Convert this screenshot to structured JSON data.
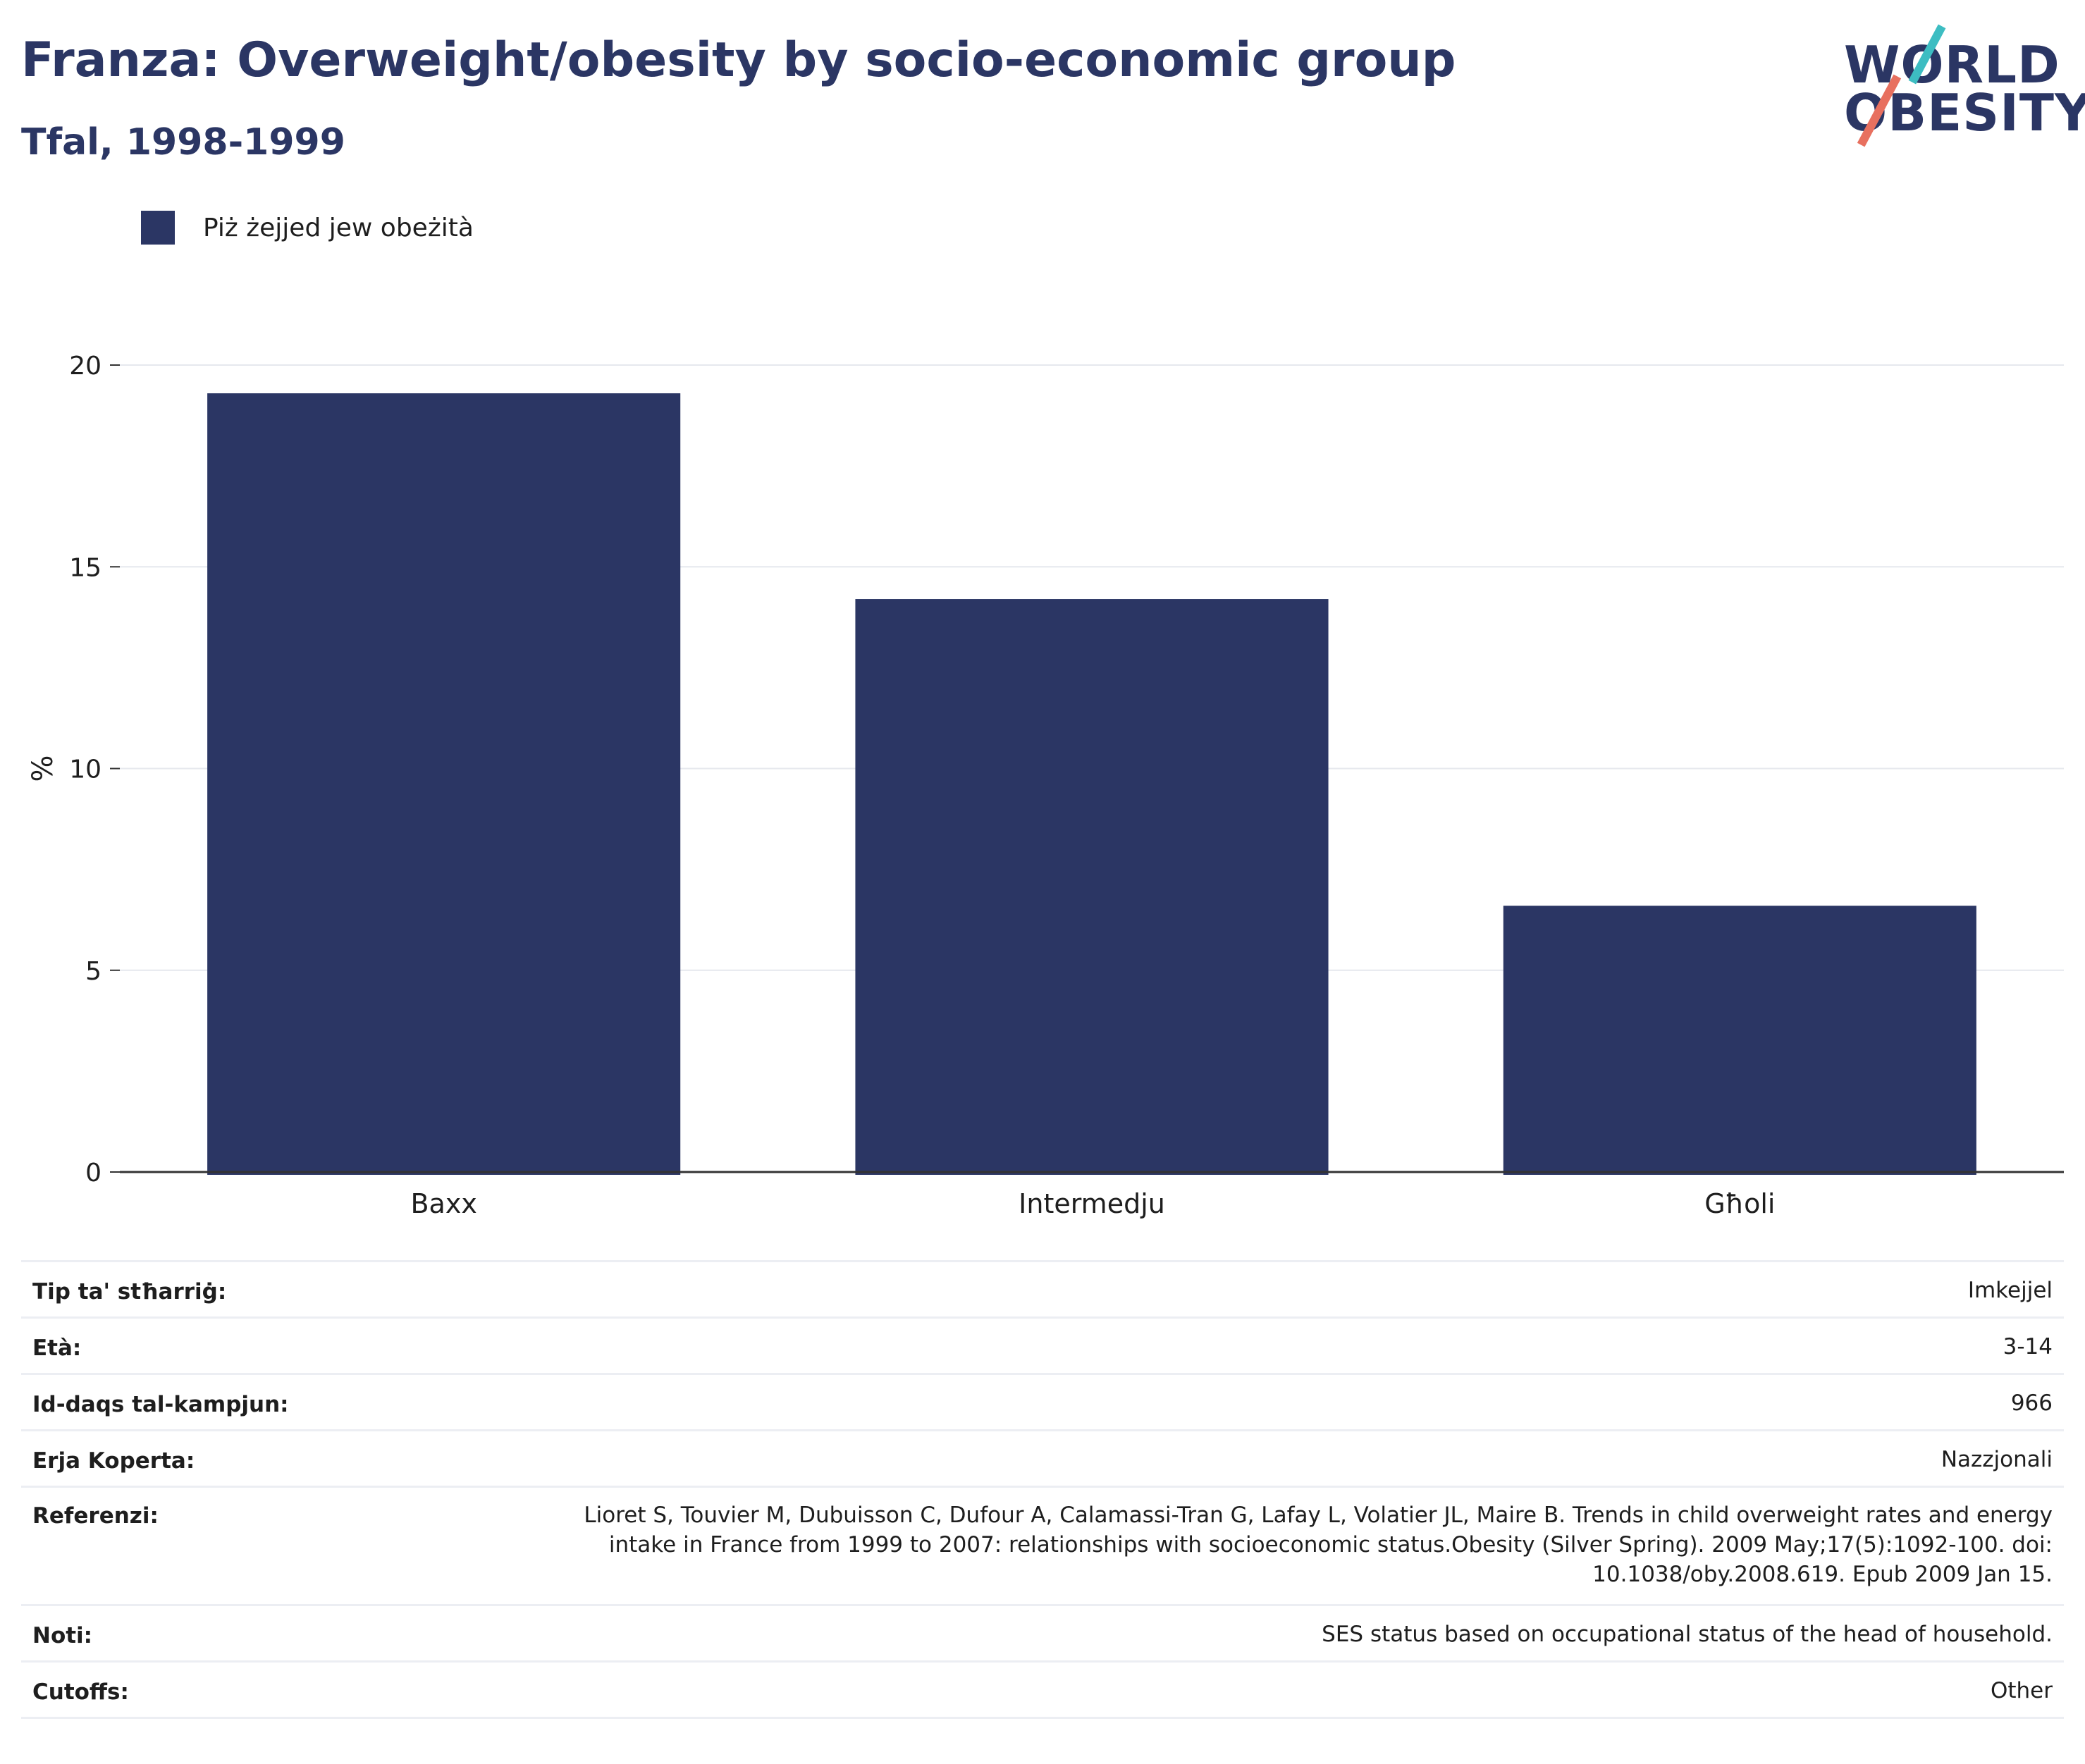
{
  "header": {
    "title": "Franza: Overweight/obesity by socio-economic group",
    "subtitle": "Tfal, 1998-1999"
  },
  "logo": {
    "line1": "WORLD",
    "line2": "OBESITY",
    "accent_colors": [
      "#3dbdc2",
      "#e8705f"
    ]
  },
  "colors": {
    "bar": "#2b3664",
    "title": "#2b3664",
    "grid": "#e6e8ee",
    "axis": "#333333"
  },
  "chart_data": {
    "type": "bar",
    "categories": [
      "Baxx",
      "Intermedju",
      "Għoli"
    ],
    "series": [
      {
        "name": "Piż żejjed jew obeżità",
        "values": [
          19.3,
          14.2,
          6.6
        ]
      }
    ],
    "ylabel": "%",
    "xlabel": "",
    "ylim": [
      0,
      20
    ],
    "yticks": [
      0,
      5,
      10,
      15,
      20
    ],
    "grid": true,
    "legend_position": "top-left"
  },
  "info": {
    "rows": [
      {
        "key": "Tip ta' stħarriġ:",
        "value": "Imkejjel"
      },
      {
        "key": "Età:",
        "value": "3-14"
      },
      {
        "key": "Id-daqs tal-kampjun:",
        "value": "966"
      },
      {
        "key": "Erja Koperta:",
        "value": "Nazzjonali"
      },
      {
        "key": "Referenzi:",
        "value": "Lioret S, Touvier M, Dubuisson C, Dufour A, Calamassi-Tran G, Lafay L, Volatier JL, Maire B. Trends in child overweight rates and energy intake in France from 1999 to 2007: relationships with socioeconomic status.Obesity (Silver Spring). 2009 May;17(5):1092-100. doi: 10.1038/oby.2008.619. Epub 2009 Jan 15."
      },
      {
        "key": "Noti:",
        "value": "SES status based on occupational status of the head of household."
      },
      {
        "key": "Cutoffs:",
        "value": "Other"
      }
    ]
  }
}
